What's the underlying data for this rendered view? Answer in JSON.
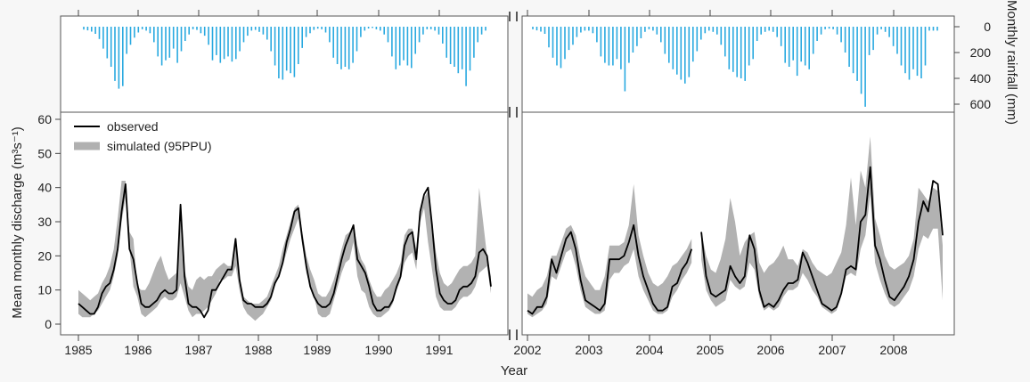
{
  "chart_data": {
    "type": "line",
    "xlabel": "Year",
    "ylabel_left": "Mean monthly discharge (m³s⁻¹)",
    "ylabel_right": "Monthly rainfall (mm)",
    "discharge_yticks": [
      0,
      10,
      20,
      30,
      40,
      50,
      60
    ],
    "discharge_ylim": [
      0,
      60
    ],
    "rainfall_yticks": [
      0,
      200,
      400,
      600
    ],
    "rainfall_ylim": [
      0,
      600
    ],
    "rainfall_axis_inverted": true,
    "axis_break_between": [
      "1991",
      "2002"
    ],
    "grid": false,
    "legend_position": "top-left",
    "legend": [
      {
        "label": "observed",
        "color": "#000000"
      },
      {
        "label": "simulated (95PPU)",
        "color": "#b0b0b0"
      }
    ],
    "segments": [
      {
        "years": [
          "1985",
          "1986",
          "1987",
          "1988",
          "1989",
          "1990",
          "1991"
        ],
        "observed": [
          6,
          5,
          4,
          3,
          3,
          5,
          9,
          11,
          12,
          16,
          22,
          33,
          41,
          22,
          19,
          12,
          6,
          5,
          5,
          6,
          7,
          9,
          10,
          9,
          9,
          10,
          35,
          14,
          6,
          5,
          5,
          4,
          2,
          4,
          10,
          10,
          12,
          14,
          16,
          16,
          25,
          13,
          7,
          6,
          6,
          5,
          5,
          5,
          6,
          8,
          12,
          14,
          18,
          24,
          28,
          33,
          34,
          25,
          17,
          11,
          8,
          6,
          5,
          5,
          6,
          9,
          14,
          19,
          23,
          26,
          29,
          19,
          17,
          15,
          11,
          6,
          4,
          4,
          5,
          5,
          7,
          11,
          14,
          23,
          26,
          27,
          19,
          33,
          38,
          40,
          29,
          16,
          9,
          7,
          6,
          6,
          7,
          10,
          11,
          11,
          12,
          14,
          21,
          22,
          20,
          11
        ],
        "band_lower": [
          3,
          2,
          2,
          2,
          3,
          4,
          6,
          8,
          10,
          14,
          20,
          30,
          37,
          22,
          11,
          8,
          3,
          2,
          3,
          4,
          5,
          7,
          8,
          7,
          7,
          8,
          12,
          8,
          4,
          2,
          3,
          3,
          4,
          5,
          7,
          9,
          13,
          13,
          14,
          14,
          17,
          10,
          5,
          3,
          2,
          1,
          2,
          3,
          5,
          7,
          11,
          14,
          17,
          21,
          25,
          28,
          31,
          23,
          15,
          11,
          8,
          3,
          2,
          2,
          3,
          7,
          11,
          15,
          18,
          19,
          24,
          14,
          10,
          9,
          5,
          3,
          2,
          2,
          3,
          4,
          6,
          10,
          13,
          18,
          20,
          21,
          16,
          30,
          34,
          24,
          16,
          8,
          5,
          4,
          4,
          4,
          5,
          7,
          8,
          8,
          9,
          11,
          15,
          16,
          17,
          9
        ],
        "band_upper": [
          10,
          9,
          8,
          7,
          8,
          9,
          12,
          14,
          17,
          22,
          31,
          42,
          42,
          27,
          25,
          11,
          10,
          10,
          12,
          15,
          18,
          20,
          16,
          13,
          14,
          15,
          30,
          16,
          11,
          10,
          13,
          14,
          13,
          14,
          14,
          16,
          17,
          18,
          17,
          17,
          25,
          13,
          8,
          7,
          6,
          6,
          6,
          7,
          8,
          11,
          14,
          17,
          22,
          26,
          30,
          34,
          35,
          27,
          20,
          16,
          13,
          9,
          8,
          8,
          10,
          13,
          17,
          22,
          26,
          27,
          29,
          23,
          19,
          17,
          13,
          10,
          8,
          8,
          10,
          11,
          13,
          15,
          18,
          26,
          28,
          28,
          22,
          34,
          37,
          39,
          30,
          21,
          15,
          12,
          11,
          12,
          14,
          16,
          17,
          17,
          18,
          20,
          40,
          30,
          20,
          14
        ]
      },
      {
        "years": [
          "2002",
          "2003",
          "2004",
          "2005",
          "2006",
          "2007",
          "2008"
        ],
        "observed": [
          4,
          3,
          5,
          5,
          8,
          19,
          15,
          20,
          25,
          27,
          22,
          13,
          7,
          6,
          5,
          4,
          6,
          19,
          19,
          19,
          20,
          24,
          29,
          20,
          14,
          10,
          6,
          4,
          4,
          5,
          11,
          12,
          16,
          18,
          22,
          null,
          27,
          14,
          9,
          8,
          9,
          10,
          17,
          14,
          12,
          14,
          26,
          22,
          10,
          5,
          6,
          5,
          7,
          10,
          12,
          12,
          13,
          21,
          18,
          14,
          10,
          6,
          5,
          4,
          5,
          9,
          16,
          17,
          16,
          30,
          32,
          46,
          23,
          19,
          13,
          8,
          7,
          9,
          11,
          14,
          19,
          30,
          36,
          33,
          42,
          41,
          26
        ],
        "band_lower": [
          3,
          2,
          3,
          4,
          6,
          14,
          13,
          17,
          21,
          22,
          17,
          10,
          5,
          4,
          3,
          3,
          4,
          13,
          15,
          15,
          17,
          18,
          22,
          14,
          10,
          7,
          4,
          3,
          3,
          4,
          8,
          10,
          13,
          15,
          18,
          null,
          19,
          10,
          7,
          5,
          6,
          7,
          13,
          11,
          10,
          11,
          18,
          16,
          8,
          4,
          5,
          4,
          5,
          8,
          10,
          10,
          11,
          15,
          13,
          10,
          8,
          5,
          4,
          3,
          4,
          8,
          14,
          15,
          14,
          22,
          26,
          38,
          18,
          13,
          9,
          6,
          5,
          6,
          8,
          10,
          14,
          22,
          26,
          25,
          28,
          28,
          7
        ],
        "band_upper": [
          9,
          8,
          10,
          11,
          14,
          20,
          20,
          24,
          28,
          29,
          26,
          19,
          14,
          12,
          10,
          10,
          14,
          23,
          23,
          23,
          24,
          29,
          41,
          26,
          20,
          15,
          12,
          11,
          12,
          14,
          17,
          18,
          20,
          22,
          25,
          null,
          27,
          20,
          16,
          15,
          19,
          25,
          37,
          30,
          20,
          24,
          26,
          27,
          18,
          15,
          17,
          18,
          20,
          23,
          19,
          19,
          17,
          22,
          21,
          18,
          16,
          15,
          14,
          15,
          18,
          21,
          29,
          43,
          29,
          45,
          40,
          55,
          31,
          26,
          20,
          17,
          16,
          17,
          18,
          20,
          25,
          40,
          38,
          36,
          40,
          39,
          23
        ]
      }
    ],
    "rainfall_segments": [
      [
        22,
        28,
        38,
        55,
        95,
        170,
        245,
        310,
        420,
        480,
        460,
        210,
        140,
        85,
        45,
        20,
        30,
        50,
        120,
        230,
        300,
        260,
        240,
        170,
        280,
        190,
        110,
        60,
        20,
        25,
        50,
        70,
        140,
        260,
        220,
        280,
        250,
        230,
        270,
        250,
        190,
        120,
        70,
        30,
        25,
        40,
        60,
        100,
        190,
        300,
        400,
        410,
        340,
        360,
        390,
        290,
        165,
        80,
        50,
        25,
        15,
        20,
        45,
        120,
        240,
        290,
        330,
        310,
        330,
        280,
        190,
        80,
        30,
        14,
        10,
        20,
        30,
        60,
        120,
        230,
        330,
        300,
        260,
        300,
        320,
        210,
        120,
        60,
        20,
        20,
        30,
        60,
        130,
        240,
        290,
        310,
        360,
        330,
        460,
        340,
        240,
        120,
        60,
        30
      ],
      [
        20,
        28,
        38,
        55,
        160,
        240,
        300,
        320,
        250,
        180,
        140,
        80,
        45,
        30,
        30,
        50,
        120,
        230,
        280,
        300,
        300,
        250,
        330,
        500,
        280,
        200,
        150,
        90,
        40,
        20,
        30,
        60,
        120,
        210,
        280,
        330,
        370,
        410,
        440,
        390,
        270,
        190,
        100,
        50,
        30,
        40,
        60,
        140,
        230,
        330,
        350,
        390,
        400,
        420,
        300,
        250,
        110,
        60,
        40,
        30,
        40,
        80,
        150,
        280,
        310,
        260,
        380,
        270,
        300,
        330,
        210,
        110,
        60,
        20,
        15,
        20,
        60,
        120,
        200,
        310,
        360,
        420,
        520,
        620,
        220,
        180,
        60,
        20,
        40,
        80,
        150,
        210,
        300,
        360,
        410,
        330,
        380,
        400,
        300,
        30,
        30,
        30
      ]
    ]
  }
}
